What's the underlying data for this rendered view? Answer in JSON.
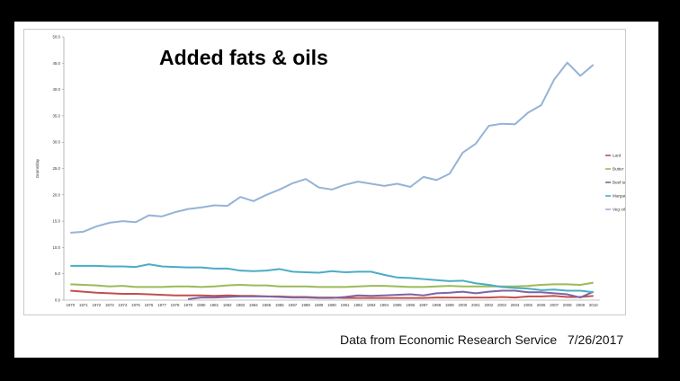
{
  "slide": {
    "source": "Data from Economic Research Service",
    "date": "7/26/2017"
  },
  "chart_data": {
    "type": "line",
    "title": "Added fats & oils",
    "xlabel": "",
    "ylabel": "Grams/day",
    "ylim": [
      0,
      50
    ],
    "yticks": [
      "0.0",
      "5.0",
      "10.0",
      "15.0",
      "20.0",
      "25.0",
      "30.0",
      "35.0",
      "40.0",
      "45.0",
      "50.0"
    ],
    "x": [
      "1970",
      "1971",
      "1972",
      "1973",
      "1974",
      "1975",
      "1976",
      "1977",
      "1978",
      "1979",
      "1980",
      "1981",
      "1982",
      "1983",
      "1984",
      "1985",
      "1986",
      "1987",
      "1988",
      "1989",
      "1990",
      "1991",
      "1992",
      "1993",
      "1994",
      "1995",
      "1996",
      "1997",
      "1998",
      "1999",
      "2000",
      "2001",
      "2002",
      "2003",
      "2004",
      "2005",
      "2006",
      "2007",
      "2008",
      "2009",
      "2010"
    ],
    "grid": false,
    "legend_position": "right",
    "series": [
      {
        "name": "Lard",
        "color": "#c0504d",
        "values": [
          1.8,
          1.6,
          1.4,
          1.3,
          1.2,
          1.2,
          1.1,
          1.0,
          0.9,
          0.9,
          0.9,
          0.8,
          0.9,
          0.8,
          0.8,
          0.7,
          0.7,
          0.6,
          0.6,
          0.5,
          0.5,
          0.4,
          0.4,
          0.4,
          0.4,
          0.4,
          0.4,
          0.4,
          0.5,
          0.5,
          0.5,
          0.5,
          0.5,
          0.6,
          0.5,
          0.7,
          0.7,
          0.8,
          0.6,
          0.6,
          0.8
        ]
      },
      {
        "name": "Butter",
        "color": "#9bbb59",
        "values": [
          3.0,
          2.9,
          2.8,
          2.6,
          2.7,
          2.5,
          2.5,
          2.5,
          2.6,
          2.6,
          2.5,
          2.6,
          2.8,
          2.9,
          2.8,
          2.8,
          2.6,
          2.6,
          2.6,
          2.5,
          2.5,
          2.5,
          2.6,
          2.7,
          2.7,
          2.6,
          2.5,
          2.5,
          2.6,
          2.7,
          2.6,
          2.6,
          2.6,
          2.6,
          2.6,
          2.7,
          2.9,
          3.0,
          3.0,
          2.9,
          3.3
        ]
      },
      {
        "name": "Beef  tallow",
        "color": "#8064a2",
        "values": [
          null,
          null,
          null,
          null,
          null,
          null,
          null,
          null,
          null,
          0.2,
          0.5,
          0.5,
          0.6,
          0.7,
          0.7,
          0.7,
          0.6,
          0.5,
          0.5,
          0.4,
          0.4,
          0.6,
          0.9,
          0.8,
          0.9,
          1.0,
          1.1,
          0.9,
          1.3,
          1.4,
          1.6,
          1.3,
          1.6,
          1.8,
          1.8,
          1.5,
          1.5,
          1.3,
          1.1,
          0.5,
          1.6
        ]
      },
      {
        "name": "Margarine",
        "color": "#4bacc6",
        "values": [
          6.5,
          6.5,
          6.5,
          6.4,
          6.4,
          6.3,
          6.8,
          6.4,
          6.3,
          6.2,
          6.2,
          6.0,
          6.0,
          5.6,
          5.5,
          5.6,
          5.9,
          5.4,
          5.3,
          5.2,
          5.5,
          5.3,
          5.4,
          5.4,
          4.8,
          4.3,
          4.2,
          4.0,
          3.8,
          3.6,
          3.7,
          3.2,
          2.9,
          2.5,
          2.3,
          2.2,
          1.9,
          2.0,
          1.8,
          1.8,
          1.5
        ]
      },
      {
        "name": "Veg oils",
        "color": "#95b3d7",
        "values": [
          12.8,
          13.0,
          14.0,
          14.7,
          15.0,
          14.8,
          16.1,
          15.9,
          16.7,
          17.3,
          17.6,
          18.0,
          17.9,
          19.6,
          18.8,
          20.0,
          21.0,
          22.2,
          23.0,
          21.4,
          21.0,
          21.9,
          22.5,
          22.1,
          21.7,
          22.1,
          21.5,
          23.4,
          22.8,
          24.0,
          28.0,
          29.7,
          33.1,
          33.5,
          33.4,
          35.6,
          37.0,
          41.9,
          45.1,
          42.6,
          44.7
        ]
      }
    ]
  }
}
